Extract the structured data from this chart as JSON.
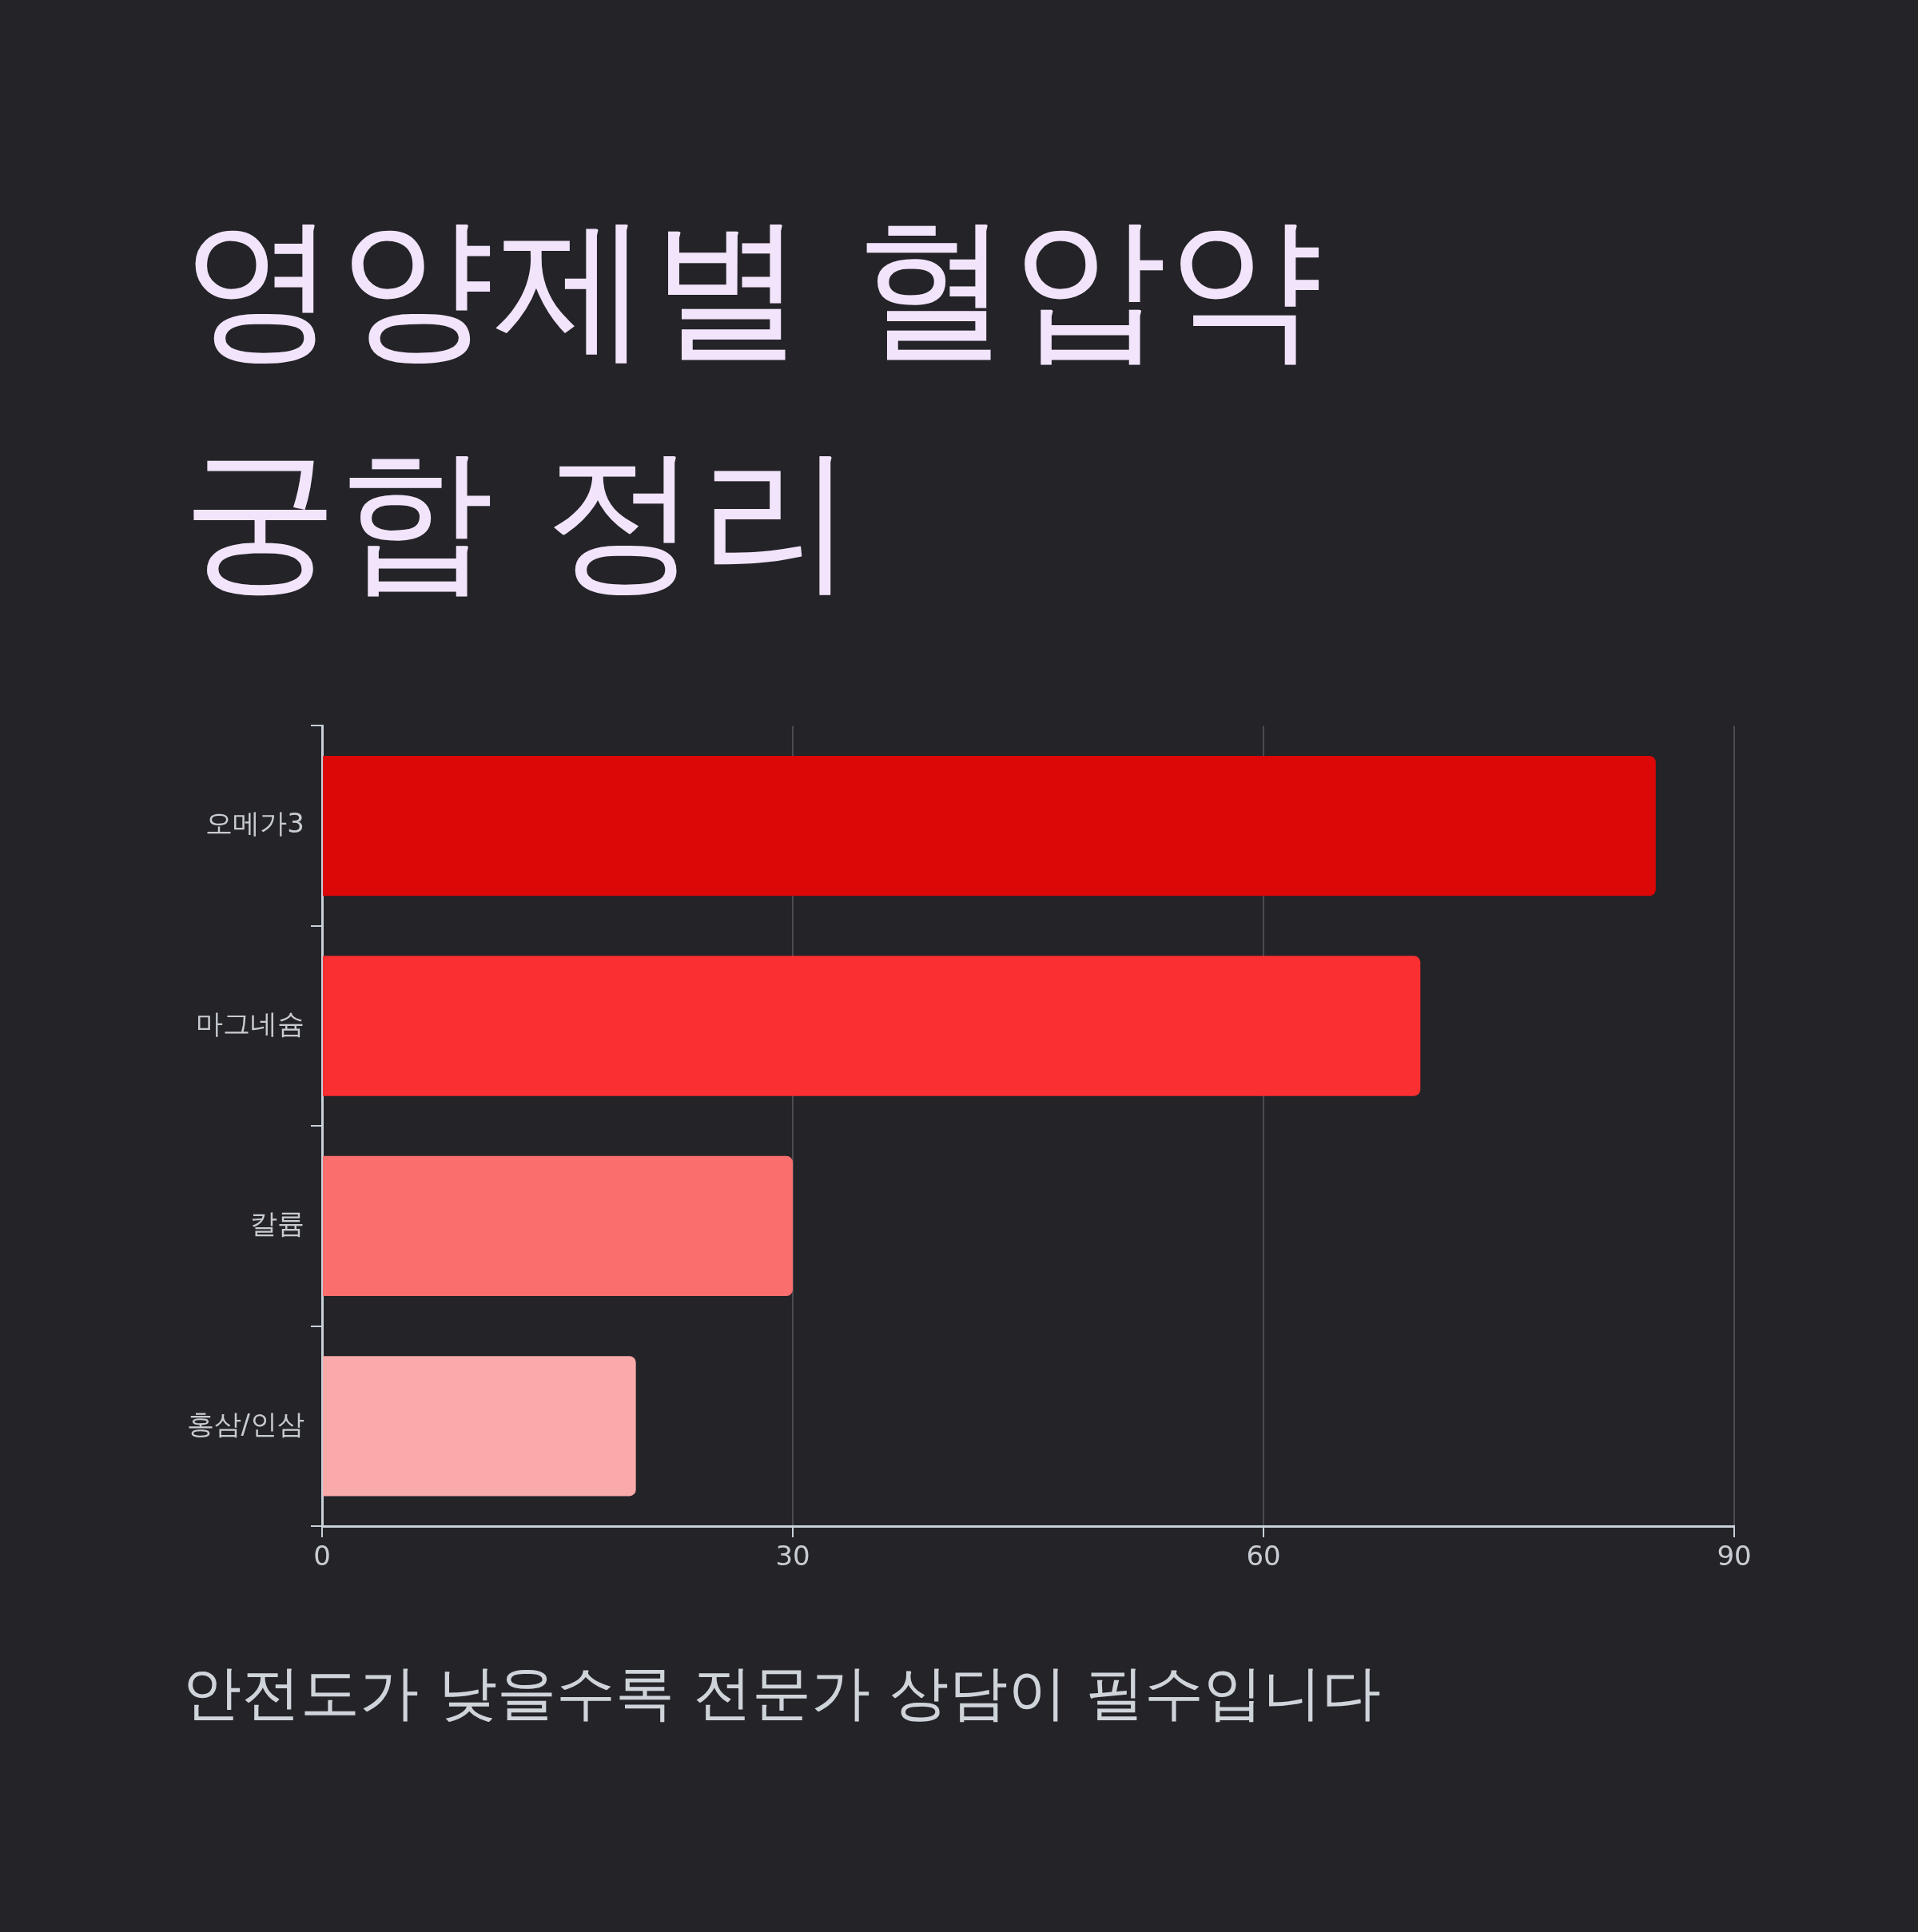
{
  "chart_data": {
    "type": "bar",
    "orientation": "horizontal",
    "title": "영양제별 혈압약\n궁합 정리",
    "categories": [
      "오메가3",
      "마그네슘",
      "칼륨",
      "홍삼/인삼"
    ],
    "values": [
      85,
      70,
      30,
      20
    ],
    "colors": [
      "#dc0707",
      "#f92f31",
      "#fa6e6e",
      "#fbaaaa"
    ],
    "xlim": [
      0,
      90
    ],
    "xticks": [
      0,
      30,
      60,
      90
    ],
    "grid": "x",
    "legend": false,
    "annotations": [
      "안전도가 낮을수록 전문가 상담이 필수입니다"
    ]
  }
}
